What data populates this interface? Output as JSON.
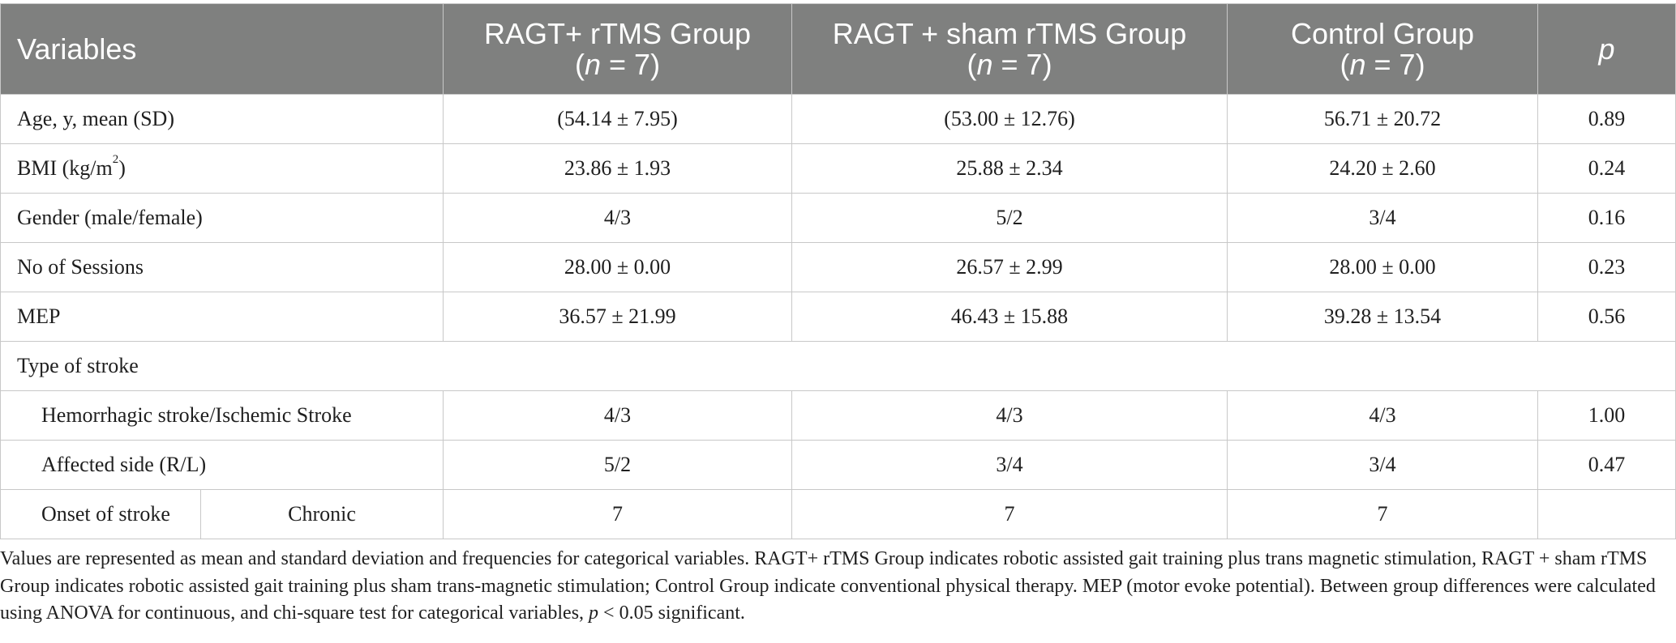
{
  "header": {
    "variables": "Variables",
    "g1_name": "RAGT+ rTMS Group",
    "g2_name": "RAGT + sham rTMS Group",
    "g3_name": "Control Group",
    "n_var": "n",
    "n_rest": " = 7",
    "p": "p"
  },
  "rows": {
    "age": {
      "label": "Age, y, mean (SD)",
      "g1": "(54.14 ± 7.95)",
      "g2": "(53.00 ± 12.76)",
      "g3": "56.71 ± 20.72",
      "p": "0.89"
    },
    "bmi": {
      "label_prefix": "BMI (kg/m",
      "label_sup": "2",
      "label_suffix": ")",
      "g1": "23.86 ± 1.93",
      "g2": "25.88 ± 2.34",
      "g3": "24.20 ± 2.60",
      "p": "0.24"
    },
    "gender": {
      "label": "Gender (male/female)",
      "g1": "4/3",
      "g2": "5/2",
      "g3": "3/4",
      "p": "0.16"
    },
    "sessions": {
      "label": "No of Sessions",
      "g1": "28.00 ± 0.00",
      "g2": "26.57 ± 2.99",
      "g3": "28.00 ± 0.00",
      "p": "0.23"
    },
    "mep": {
      "label": "MEP",
      "g1": "36.57 ± 21.99",
      "g2": "46.43 ± 15.88",
      "g3": "39.28 ± 13.54",
      "p": "0.56"
    },
    "stroke_type": {
      "label": "Type of stroke"
    },
    "hem": {
      "label": "Hemorrhagic stroke/Ischemic Stroke",
      "g1": "4/3",
      "g2": "4/3",
      "g3": "4/3",
      "p": "1.00"
    },
    "side": {
      "label": "Affected side (R/L)",
      "g1": "5/2",
      "g2": "3/4",
      "g3": "3/4",
      "p": "0.47"
    },
    "onset": {
      "label": "Onset of stroke",
      "sub": "Chronic",
      "g1": "7",
      "g2": "7",
      "g3": "7",
      "p": ""
    }
  },
  "note": {
    "part1": "Values are represented as mean and standard deviation and frequencies for categorical variables. RAGT+ rTMS Group indicates robotic assisted gait training plus trans magnetic stimulation, RAGT + sham rTMS Group indicates robotic assisted gait training plus sham trans-magnetic stimulation; Control Group indicate conventional physical therapy. MEP (motor evoke potential). Between group differences were calculated using ANOVA for continuous, and chi-square test for categorical variables, ",
    "p_var": "p",
    "part2": " < 0.05 significant."
  }
}
